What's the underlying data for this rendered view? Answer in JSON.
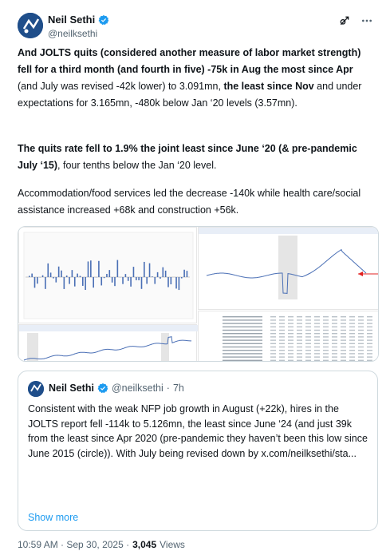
{
  "author": {
    "name": "Neil Sethi",
    "handle": "@neilksethi"
  },
  "tweet": {
    "p1": [
      {
        "text": "And JOLTS quits (considered another measure of labor market strength) fell for a third month (and fourth in five) -75k in Aug the most since Apr",
        "bold": true
      },
      {
        "text": " (and July was revised -42k lower) to 3.091mn, ",
        "bold": false
      },
      {
        "text": "the least since Nov",
        "bold": true
      },
      {
        "text": " and under expectations for 3.165mn, -480k below Jan ‘20 levels (3.57mn).",
        "bold": false
      }
    ],
    "p2": [
      {
        "text": "The quits rate fell to 1.9% the joint least since June ‘20 (& pre-pandemic July ‘15)",
        "bold": true
      },
      {
        "text": ", four tenths below the Jan ‘20 level.",
        "bold": false
      }
    ],
    "p3": "Accommodation/food services led the decrease -140k while health care/social assistance increased +68k and construction +56k."
  },
  "quote": {
    "name": "Neil Sethi",
    "handle": "@neilksethi",
    "separator": "·",
    "age": "7h",
    "text": "Consistent with the weak NFP job growth in August (+22k), hires in the JOLTS report fell -114k to 5.126mn, the least since June ‘24 (and just 39k from the least since Apr 2020 (pre-pandemic they haven’t been this low since June 2015 (circle)). With July being revised down by x.com/neilksethi/sta...",
    "show_more": "Show more"
  },
  "footer": {
    "time": "10:59 AM · Sep 30, 2025 ·",
    "views_count": "3,045",
    "views_label": "Views"
  },
  "colors": {
    "accent": "#1d9bf0",
    "chart_line": "#4a6fb5",
    "highlight": "#e02020"
  },
  "icons": {
    "verified": "verified-badge-icon",
    "grok": "grok-icon",
    "more": "more-options-icon"
  }
}
